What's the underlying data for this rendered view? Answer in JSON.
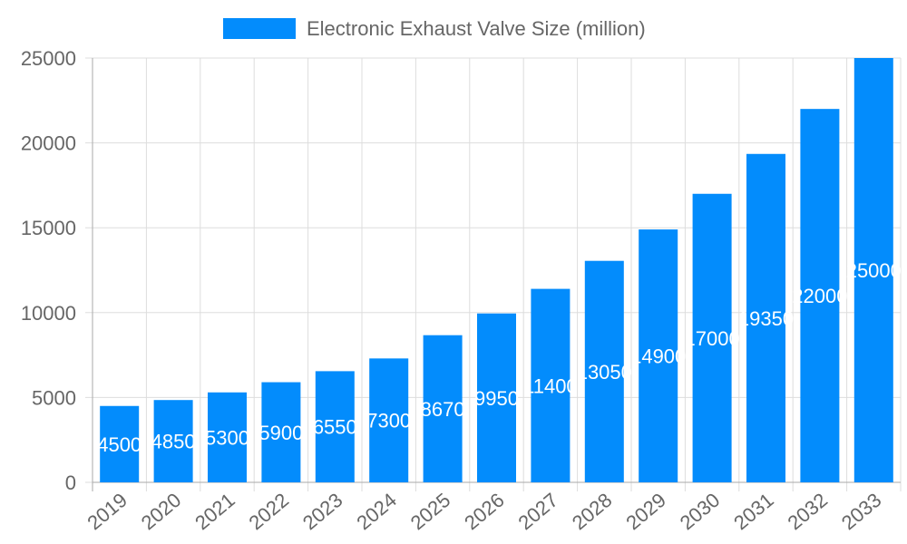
{
  "chart_data": {
    "type": "bar",
    "categories": [
      "2019",
      "2020",
      "2021",
      "2022",
      "2023",
      "2024",
      "2025",
      "2026",
      "2027",
      "2028",
      "2029",
      "2030",
      "2031",
      "2032",
      "2033"
    ],
    "series": [
      {
        "name": "Electronic Exhaust Valve Size (million)",
        "values": [
          4500,
          4850,
          5300,
          5900,
          6550,
          7300,
          8670,
          9950,
          11400,
          13050,
          14900,
          17000,
          19350,
          22000,
          25000
        ],
        "color": "#038cfc"
      }
    ],
    "ylim": [
      0,
      25000
    ],
    "yticks": [
      0,
      5000,
      10000,
      15000,
      20000,
      25000
    ],
    "grid": true,
    "legend": "top",
    "data_labels": true
  }
}
